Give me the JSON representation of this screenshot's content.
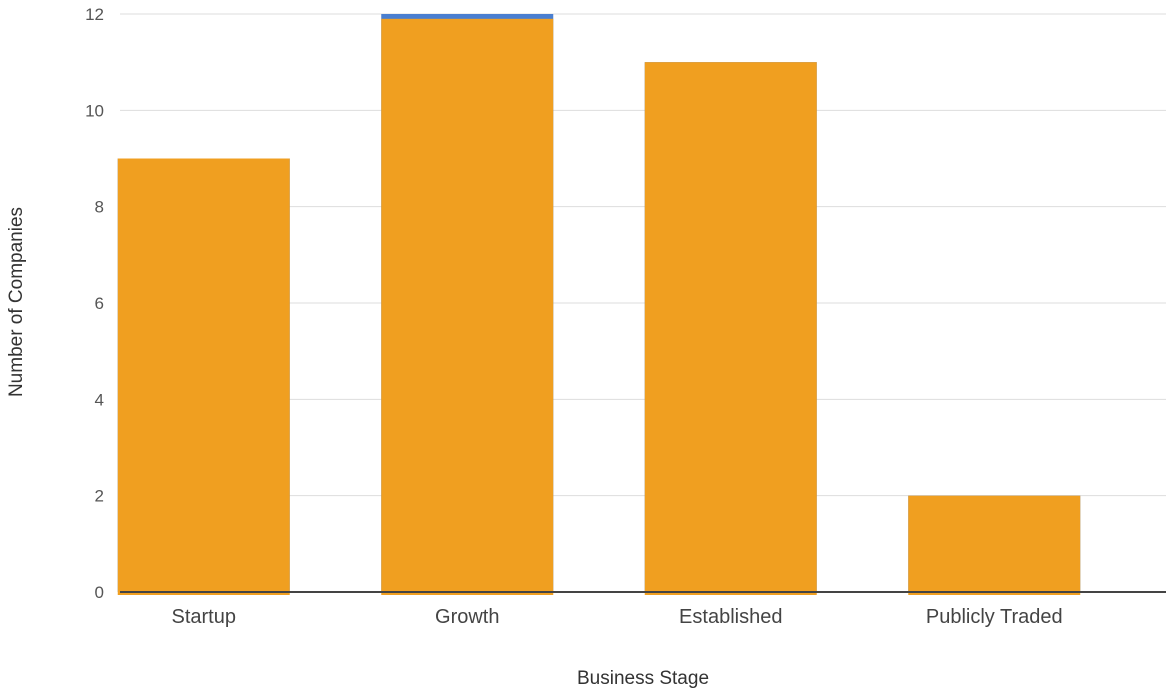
{
  "chart_data": {
    "type": "bar",
    "title": "",
    "xlabel": "Business Stage",
    "ylabel": "Number of Companies",
    "categories": [
      "Startup",
      "Growth",
      "Established",
      "Publicly Traded"
    ],
    "series": [
      {
        "values": [
          9,
          12,
          11,
          2
        ],
        "color": "#4a7fd0"
      },
      {
        "values": [
          9,
          11.9,
          11,
          2
        ],
        "color": "#f09f20"
      }
    ],
    "ylim": [
      0,
      12
    ],
    "yticks": [
      0,
      2,
      4,
      6,
      8,
      10,
      12
    ],
    "grid": true,
    "legend": "none"
  }
}
